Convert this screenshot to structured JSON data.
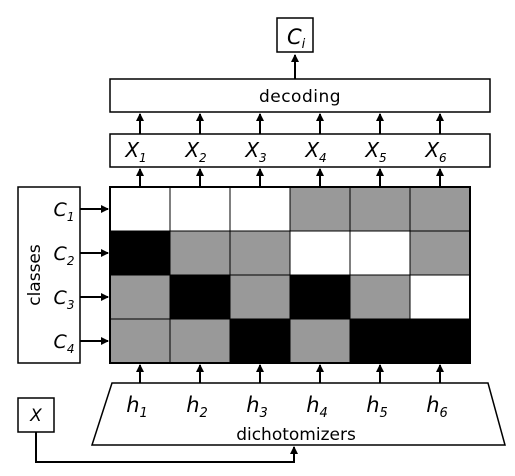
{
  "output": {
    "base": "C",
    "sub": "i"
  },
  "decoding_label": "decoding",
  "codeword_bits": [
    {
      "base": "X",
      "sub": "1"
    },
    {
      "base": "X",
      "sub": "2"
    },
    {
      "base": "X",
      "sub": "3"
    },
    {
      "base": "X",
      "sub": "4"
    },
    {
      "base": "X",
      "sub": "5"
    },
    {
      "base": "X",
      "sub": "6"
    }
  ],
  "classes_label": "classes",
  "classes": [
    {
      "base": "C",
      "sub": "1"
    },
    {
      "base": "C",
      "sub": "2"
    },
    {
      "base": "C",
      "sub": "3"
    },
    {
      "base": "C",
      "sub": "4"
    }
  ],
  "matrix": [
    [
      "white",
      "white",
      "white",
      "gray",
      "gray",
      "gray"
    ],
    [
      "black",
      "gray",
      "gray",
      "white",
      "white",
      "gray"
    ],
    [
      "gray",
      "black",
      "gray",
      "black",
      "gray",
      "white"
    ],
    [
      "gray",
      "gray",
      "black",
      "gray",
      "black",
      "black"
    ]
  ],
  "colors": {
    "white": "#ffffff",
    "gray": "#999999",
    "black": "#000000"
  },
  "dichotomizers": [
    {
      "base": "h",
      "sub": "1"
    },
    {
      "base": "h",
      "sub": "2"
    },
    {
      "base": "h",
      "sub": "3"
    },
    {
      "base": "h",
      "sub": "4"
    },
    {
      "base": "h",
      "sub": "5"
    },
    {
      "base": "h",
      "sub": "6"
    }
  ],
  "dichotomizers_label": "dichotomizers",
  "input_label": "X"
}
